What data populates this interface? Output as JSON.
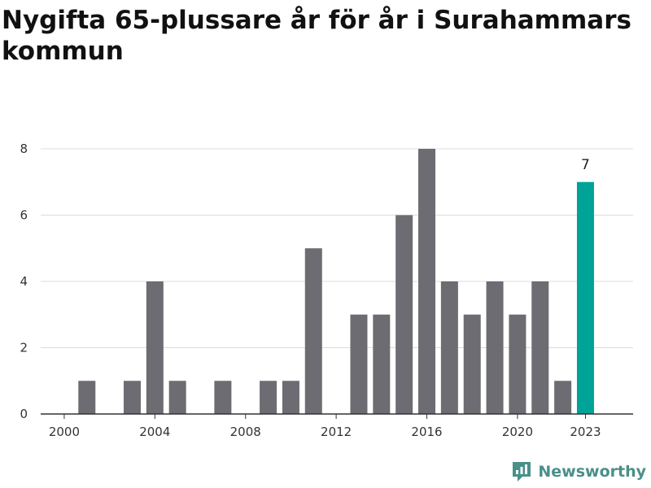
{
  "header": {
    "title": "Nygifta 65-plussare år för år i Surahammars kommun"
  },
  "brand": {
    "name": "Newsworthy",
    "color": "#4a8f8a",
    "icon": "newsworthy-chart-icon"
  },
  "chart_data": {
    "type": "bar",
    "title": "Nygifta 65-plussare år för år i Surahammars kommun",
    "xlabel": "",
    "ylabel": "",
    "categories": [
      2000,
      2001,
      2002,
      2003,
      2004,
      2005,
      2006,
      2007,
      2008,
      2009,
      2010,
      2011,
      2012,
      2013,
      2014,
      2015,
      2016,
      2017,
      2018,
      2019,
      2020,
      2021,
      2022,
      2023
    ],
    "values": [
      0,
      1,
      0,
      1,
      4,
      1,
      0,
      1,
      0,
      1,
      1,
      5,
      0,
      3,
      3,
      6,
      8,
      4,
      3,
      4,
      3,
      4,
      1,
      7
    ],
    "x_ticks": [
      "2000",
      "2004",
      "2008",
      "2012",
      "2016",
      "2020",
      "2023"
    ],
    "y_ticks": [
      "0",
      "2",
      "4",
      "6",
      "8"
    ],
    "ylim": [
      0,
      8
    ],
    "grid": true,
    "highlight": {
      "category": 2023,
      "label": "7",
      "color": "#00a398"
    },
    "bar_color": "#6d6c72",
    "grid_color": "#dcdcdc",
    "axis_color": "#333333"
  }
}
